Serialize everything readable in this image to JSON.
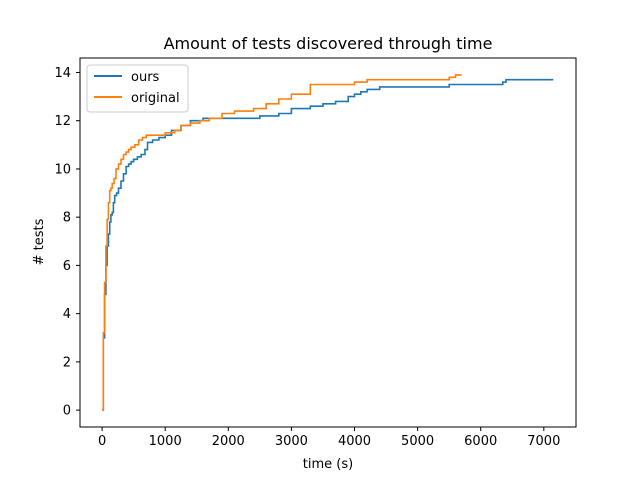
{
  "chart_data": {
    "type": "line",
    "title": "Amount of tests discovered through time",
    "xlabel": "time (s)",
    "ylabel": "# tests",
    "xlim": [
      -350,
      7510
    ],
    "ylim": [
      -0.7,
      14.6
    ],
    "xticks": [
      0,
      1000,
      2000,
      3000,
      4000,
      5000,
      6000,
      7000
    ],
    "yticks": [
      0,
      2,
      4,
      6,
      8,
      10,
      12,
      14
    ],
    "grid": false,
    "legend_position": "top-left",
    "series": [
      {
        "name": "ours",
        "color": "#1f77b4",
        "step": true,
        "x": [
          0,
          20,
          40,
          60,
          80,
          100,
          120,
          140,
          160,
          180,
          200,
          230,
          260,
          300,
          340,
          380,
          420,
          460,
          500,
          560,
          620,
          680,
          720,
          760,
          800,
          900,
          1000,
          1100,
          1250,
          1400,
          1600,
          1800,
          2500,
          2800,
          3000,
          3300,
          3500,
          3700,
          3900,
          4000,
          4100,
          4200,
          4400,
          5500,
          6200,
          6350,
          6400,
          7150
        ],
        "y": [
          0,
          3.0,
          4.8,
          6.0,
          6.8,
          7.3,
          7.8,
          8.1,
          8.2,
          8.6,
          8.9,
          9.0,
          9.2,
          9.5,
          9.8,
          10.1,
          10.2,
          10.3,
          10.4,
          10.5,
          10.6,
          10.8,
          11.1,
          11.1,
          11.2,
          11.3,
          11.4,
          11.6,
          11.8,
          12.0,
          12.1,
          12.1,
          12.2,
          12.3,
          12.5,
          12.6,
          12.7,
          12.8,
          13.0,
          13.1,
          13.2,
          13.3,
          13.4,
          13.5,
          13.5,
          13.6,
          13.7,
          13.7
        ]
      },
      {
        "name": "original",
        "color": "#ff7f0e",
        "step": true,
        "x": [
          0,
          20,
          40,
          60,
          80,
          100,
          120,
          140,
          160,
          190,
          220,
          260,
          300,
          340,
          380,
          420,
          460,
          520,
          580,
          640,
          700,
          760,
          820,
          1000,
          1150,
          1250,
          1400,
          1550,
          1700,
          1900,
          2100,
          2400,
          2600,
          2800,
          3000,
          3300,
          4000,
          4200,
          4800,
          5400,
          5500,
          5600,
          5700
        ],
        "y": [
          0,
          3.2,
          5.3,
          6.8,
          7.9,
          8.6,
          9.1,
          9.2,
          9.4,
          9.6,
          10.0,
          10.2,
          10.4,
          10.6,
          10.7,
          10.8,
          10.9,
          11.0,
          11.2,
          11.3,
          11.4,
          11.4,
          11.4,
          11.5,
          11.6,
          11.8,
          11.9,
          12.0,
          12.1,
          12.3,
          12.4,
          12.5,
          12.7,
          12.9,
          13.1,
          13.5,
          13.6,
          13.7,
          13.7,
          13.7,
          13.8,
          13.9,
          13.9
        ]
      }
    ]
  }
}
